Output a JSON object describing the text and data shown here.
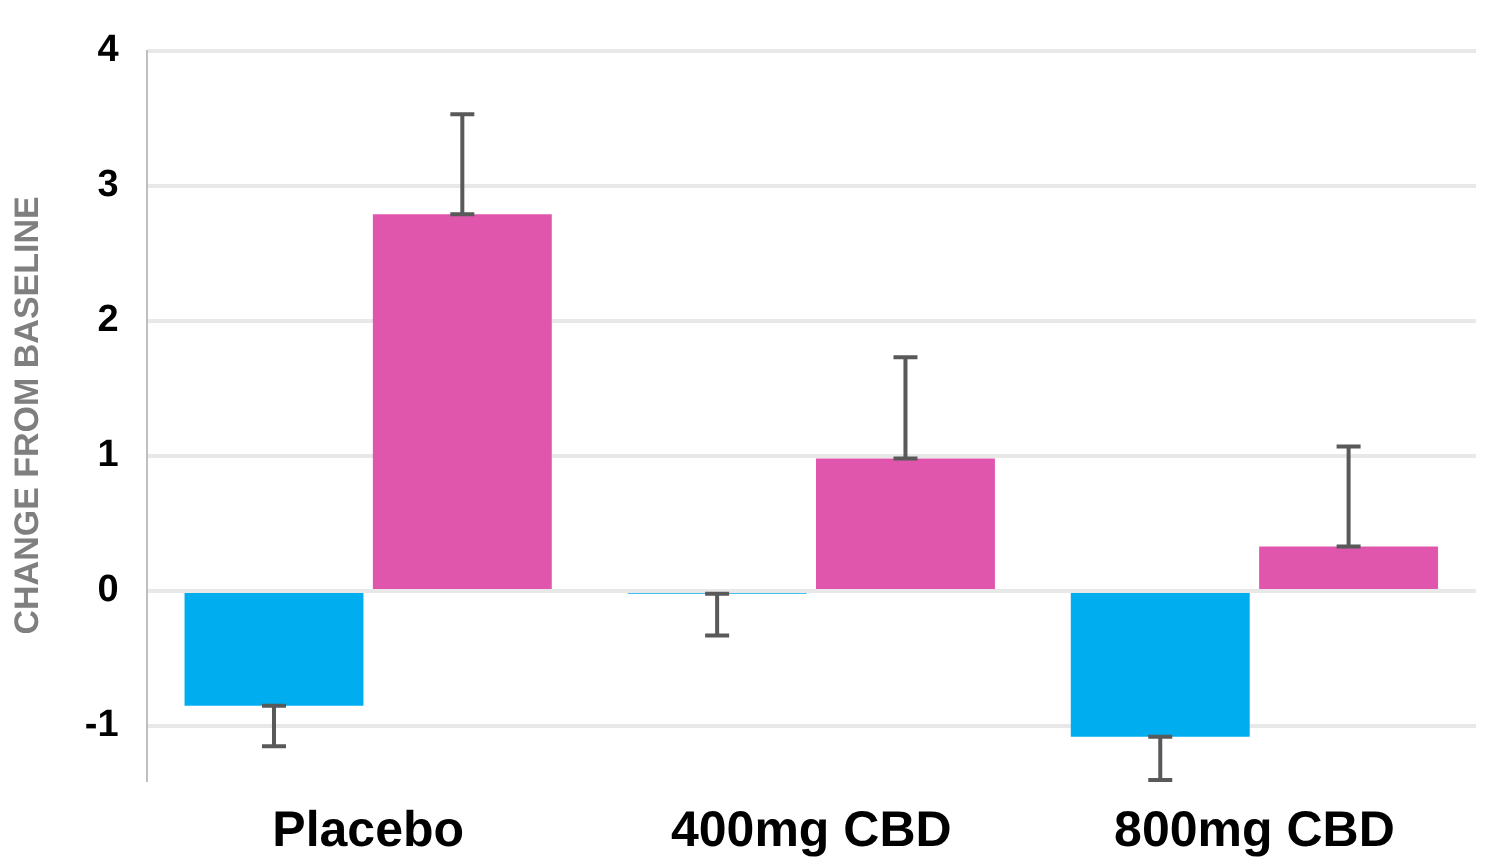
{
  "chart_data": {
    "type": "bar",
    "ylabel": "CHANGE FROM BASELINE",
    "categories": [
      "Placebo",
      "400mg CBD",
      "800mg CBD"
    ],
    "series": [
      {
        "color": "#00aeef",
        "values": [
          -0.85,
          -0.02,
          -1.08
        ],
        "errors": [
          [
            -1.15,
            -0.85
          ],
          [
            -0.33,
            -0.02
          ],
          [
            -1.4,
            -1.08
          ]
        ]
      },
      {
        "color": "#e056ad",
        "values": [
          2.79,
          0.98,
          0.33
        ],
        "errors": [
          [
            2.79,
            3.53
          ],
          [
            0.98,
            1.73
          ],
          [
            0.33,
            1.07
          ]
        ]
      }
    ],
    "ylim": [
      -1.4,
      4
    ],
    "yticks": [
      -1,
      0,
      1,
      2,
      3,
      4
    ],
    "grid": "y",
    "legend": false
  }
}
